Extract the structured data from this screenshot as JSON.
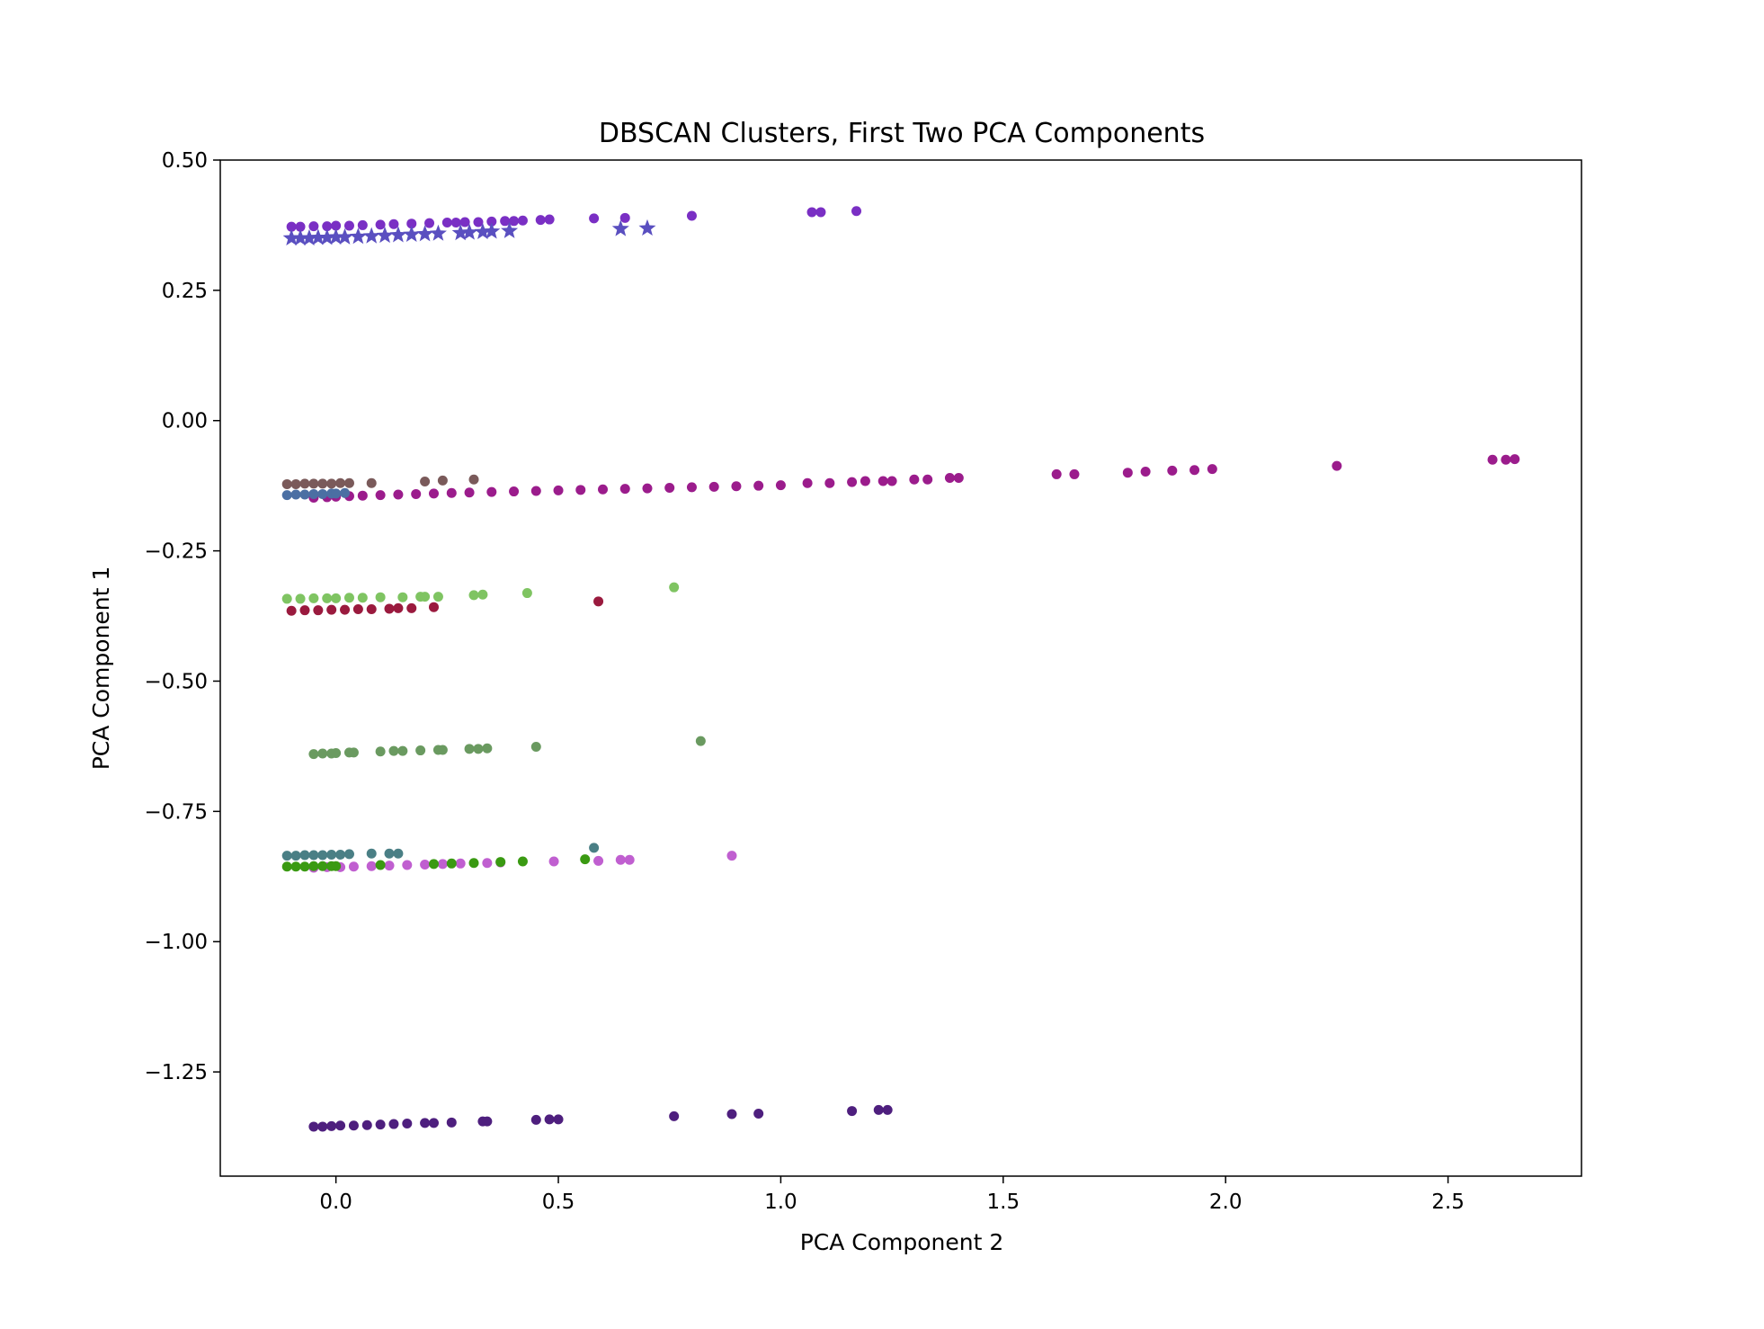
{
  "chart_data": {
    "type": "scatter",
    "title": "DBSCAN Clusters, First Two PCA Components",
    "xlabel": "PCA Component 2",
    "ylabel": "PCA Component 1",
    "xlim": [
      -0.26,
      2.8
    ],
    "ylim": [
      -1.45,
      0.5
    ],
    "xticks": [
      0.0,
      0.5,
      1.0,
      1.5,
      2.0,
      2.5
    ],
    "xtick_labels": [
      "0.0",
      "0.5",
      "1.0",
      "1.5",
      "2.0",
      "2.5"
    ],
    "yticks": [
      0.5,
      0.25,
      0.0,
      -0.25,
      -0.5,
      -0.75,
      -1.0,
      -1.25
    ],
    "ytick_labels": [
      "0.50",
      "0.25",
      "0.00",
      "−0.25",
      "−0.50",
      "−0.75",
      "−1.00",
      "−1.25"
    ],
    "grid": false,
    "legend": "none",
    "series": [
      {
        "color": "#7a2fc4",
        "marker": "circle",
        "x": [
          -0.1,
          -0.08,
          -0.05,
          -0.02,
          0.0,
          0.03,
          0.06,
          0.1,
          0.13,
          0.17,
          0.21,
          0.25,
          0.27,
          0.29,
          0.32,
          0.35,
          0.38,
          0.4,
          0.42,
          0.46,
          0.48,
          0.58,
          0.65,
          0.8,
          1.07,
          1.09,
          1.17
        ],
        "y": [
          0.372,
          0.372,
          0.373,
          0.373,
          0.374,
          0.374,
          0.375,
          0.376,
          0.377,
          0.378,
          0.379,
          0.38,
          0.38,
          0.381,
          0.381,
          0.382,
          0.383,
          0.383,
          0.384,
          0.385,
          0.386,
          0.388,
          0.389,
          0.393,
          0.4,
          0.4,
          0.402
        ]
      },
      {
        "color": "#5a4fc0",
        "marker": "star",
        "x": [
          -0.1,
          -0.08,
          -0.06,
          -0.04,
          -0.02,
          0.0,
          0.02,
          0.05,
          0.08,
          0.11,
          0.14,
          0.17,
          0.2,
          0.23,
          0.28,
          0.3,
          0.33,
          0.35,
          0.39,
          0.64,
          0.7
        ],
        "y": [
          0.35,
          0.35,
          0.35,
          0.351,
          0.351,
          0.352,
          0.352,
          0.353,
          0.354,
          0.355,
          0.356,
          0.357,
          0.358,
          0.359,
          0.36,
          0.361,
          0.362,
          0.363,
          0.364,
          0.368,
          0.369
        ]
      },
      {
        "color": "#9b1c8c",
        "marker": "circle",
        "x": [
          -0.05,
          -0.02,
          0.0,
          0.03,
          0.06,
          0.1,
          0.14,
          0.18,
          0.22,
          0.26,
          0.3,
          0.35,
          0.4,
          0.45,
          0.5,
          0.55,
          0.6,
          0.65,
          0.7,
          0.75,
          0.8,
          0.85,
          0.9,
          0.95,
          1.0,
          1.06,
          1.11,
          1.16,
          1.19,
          1.23,
          1.25,
          1.3,
          1.33,
          1.38,
          1.4,
          1.62,
          1.66,
          1.78,
          1.82,
          1.88,
          1.93,
          1.97,
          2.25,
          2.6,
          2.63,
          2.65
        ],
        "y": [
          -0.148,
          -0.147,
          -0.146,
          -0.145,
          -0.144,
          -0.143,
          -0.142,
          -0.141,
          -0.14,
          -0.139,
          -0.138,
          -0.137,
          -0.136,
          -0.135,
          -0.134,
          -0.133,
          -0.132,
          -0.131,
          -0.13,
          -0.129,
          -0.128,
          -0.127,
          -0.126,
          -0.125,
          -0.124,
          -0.12,
          -0.12,
          -0.118,
          -0.116,
          -0.116,
          -0.116,
          -0.113,
          -0.113,
          -0.11,
          -0.11,
          -0.103,
          -0.103,
          -0.1,
          -0.098,
          -0.096,
          -0.095,
          -0.093,
          -0.087,
          -0.075,
          -0.075,
          -0.074
        ]
      },
      {
        "color": "#7a5a5a",
        "marker": "circle",
        "x": [
          -0.11,
          -0.09,
          -0.07,
          -0.05,
          -0.03,
          -0.01,
          0.01,
          0.03,
          0.08,
          0.2,
          0.24,
          0.31
        ],
        "y": [
          -0.122,
          -0.122,
          -0.121,
          -0.121,
          -0.121,
          -0.121,
          -0.12,
          -0.12,
          -0.12,
          -0.117,
          -0.115,
          -0.113
        ]
      },
      {
        "color": "#4b6fa3",
        "marker": "circle",
        "x": [
          -0.11,
          -0.09,
          -0.07,
          -0.05,
          -0.03,
          -0.01,
          0.0,
          0.02
        ],
        "y": [
          -0.143,
          -0.142,
          -0.142,
          -0.141,
          -0.141,
          -0.14,
          -0.14,
          -0.139
        ]
      },
      {
        "color": "#7fc462",
        "marker": "circle",
        "x": [
          -0.11,
          -0.08,
          -0.05,
          -0.02,
          0.0,
          0.03,
          0.06,
          0.1,
          0.15,
          0.19,
          0.2,
          0.23,
          0.31,
          0.33,
          0.43,
          0.76
        ],
        "y": [
          -0.342,
          -0.342,
          -0.341,
          -0.341,
          -0.341,
          -0.34,
          -0.34,
          -0.339,
          -0.339,
          -0.338,
          -0.338,
          -0.338,
          -0.335,
          -0.334,
          -0.331,
          -0.32
        ]
      },
      {
        "color": "#9a1a3e",
        "marker": "circle",
        "x": [
          -0.1,
          -0.07,
          -0.04,
          -0.01,
          0.02,
          0.05,
          0.08,
          0.12,
          0.14,
          0.17,
          0.22,
          0.59
        ],
        "y": [
          -0.365,
          -0.364,
          -0.364,
          -0.363,
          -0.363,
          -0.362,
          -0.362,
          -0.361,
          -0.36,
          -0.36,
          -0.358,
          -0.347
        ]
      },
      {
        "color": "#6a9a60",
        "marker": "circle",
        "x": [
          -0.05,
          -0.03,
          -0.01,
          0.0,
          0.03,
          0.04,
          0.1,
          0.13,
          0.15,
          0.19,
          0.23,
          0.24,
          0.3,
          0.32,
          0.34,
          0.45,
          0.82
        ],
        "y": [
          -0.64,
          -0.639,
          -0.639,
          -0.638,
          -0.637,
          -0.637,
          -0.635,
          -0.634,
          -0.634,
          -0.633,
          -0.632,
          -0.632,
          -0.63,
          -0.63,
          -0.629,
          -0.626,
          -0.615
        ]
      },
      {
        "color": "#4a7f85",
        "marker": "circle",
        "x": [
          -0.11,
          -0.09,
          -0.07,
          -0.05,
          -0.03,
          -0.01,
          0.01,
          0.03,
          0.08,
          0.12,
          0.14,
          0.58
        ],
        "y": [
          -0.835,
          -0.835,
          -0.834,
          -0.834,
          -0.834,
          -0.833,
          -0.833,
          -0.832,
          -0.831,
          -0.831,
          -0.831,
          -0.82
        ]
      },
      {
        "color": "#c05fd0",
        "marker": "circle",
        "x": [
          -0.05,
          -0.02,
          0.01,
          0.04,
          0.08,
          0.12,
          0.16,
          0.2,
          0.24,
          0.28,
          0.34,
          0.37,
          0.49,
          0.59,
          0.64,
          0.66,
          0.89
        ],
        "y": [
          -0.858,
          -0.857,
          -0.857,
          -0.856,
          -0.855,
          -0.854,
          -0.853,
          -0.852,
          -0.851,
          -0.85,
          -0.849,
          -0.848,
          -0.846,
          -0.845,
          -0.843,
          -0.843,
          -0.835
        ]
      },
      {
        "color": "#3a9a12",
        "marker": "circle",
        "x": [
          -0.11,
          -0.09,
          -0.07,
          -0.05,
          -0.03,
          -0.01,
          0.0,
          0.1,
          0.22,
          0.26,
          0.31,
          0.37,
          0.42,
          0.56
        ],
        "y": [
          -0.856,
          -0.856,
          -0.856,
          -0.855,
          -0.855,
          -0.855,
          -0.855,
          -0.853,
          -0.851,
          -0.85,
          -0.849,
          -0.847,
          -0.846,
          -0.842
        ]
      },
      {
        "color": "#4e1f7e",
        "marker": "circle",
        "x": [
          -0.05,
          -0.03,
          -0.01,
          0.01,
          0.04,
          0.07,
          0.1,
          0.13,
          0.16,
          0.2,
          0.22,
          0.26,
          0.33,
          0.34,
          0.45,
          0.48,
          0.5,
          0.76,
          0.89,
          0.95,
          1.16,
          1.22,
          1.24
        ],
        "y": [
          -1.355,
          -1.355,
          -1.354,
          -1.353,
          -1.353,
          -1.352,
          -1.351,
          -1.35,
          -1.349,
          -1.348,
          -1.348,
          -1.347,
          -1.345,
          -1.345,
          -1.342,
          -1.341,
          -1.341,
          -1.335,
          -1.331,
          -1.33,
          -1.325,
          -1.323,
          -1.323
        ]
      }
    ]
  }
}
